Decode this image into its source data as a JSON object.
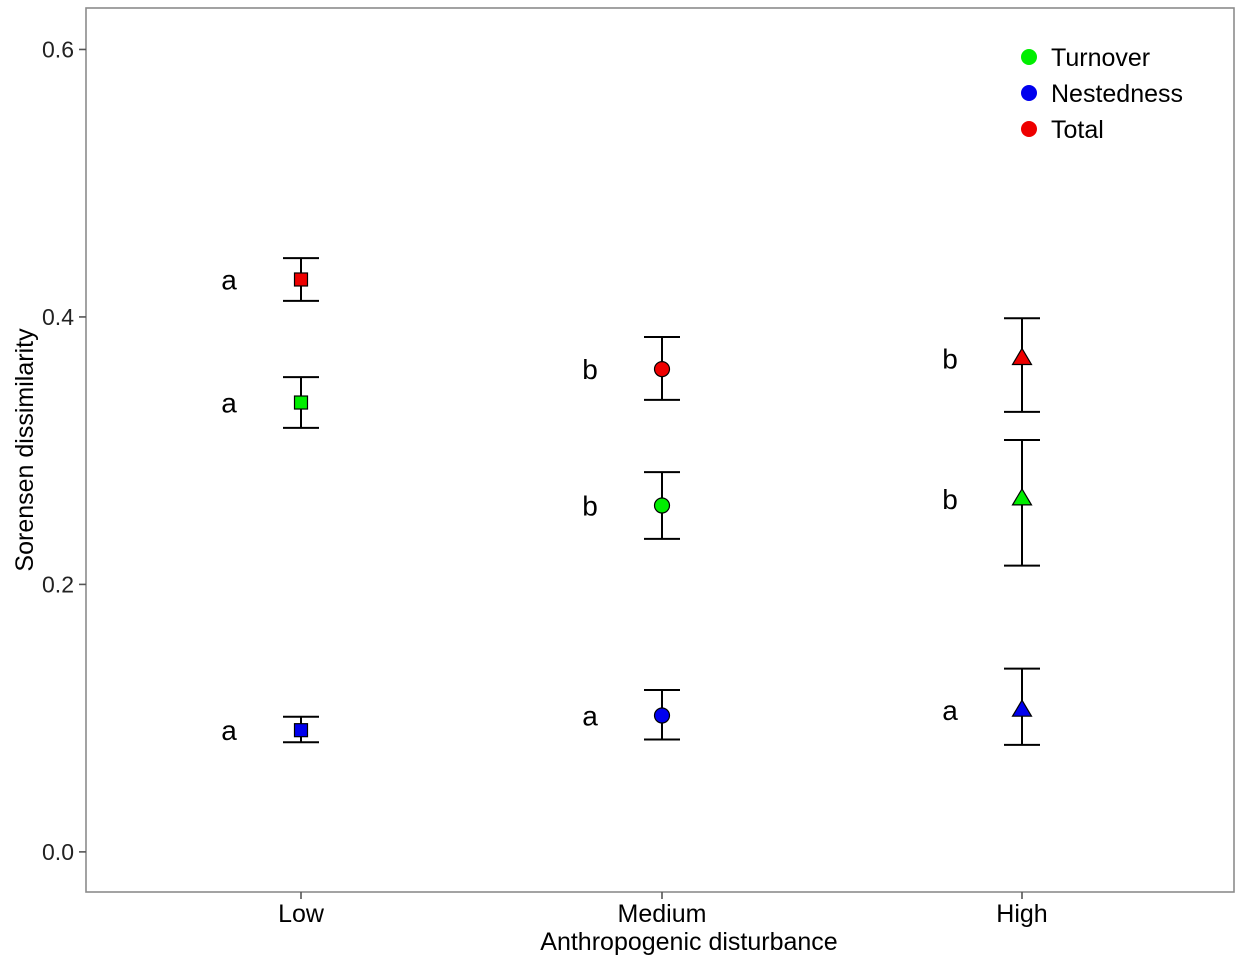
{
  "chart_data": {
    "type": "scatter",
    "title": "",
    "xlabel": "Anthropogenic disturbance",
    "ylabel": "Sorensen dissimilarity",
    "categories": [
      "Low",
      "Medium",
      "High"
    ],
    "ylim": [
      -0.03,
      0.631
    ],
    "yticks": [
      0.0,
      0.2,
      0.4,
      0.6
    ],
    "ytick_labels": [
      "0.0",
      "0.2",
      "0.4",
      "0.6"
    ],
    "grid": false,
    "legend_position": "top-right",
    "category_shapes": [
      "square",
      "circle",
      "triangle"
    ],
    "series": [
      {
        "name": "Turnover",
        "color": "#00ee00",
        "values": [
          0.336,
          0.259,
          0.264
        ],
        "lower": [
          0.317,
          0.234,
          0.214
        ],
        "upper": [
          0.355,
          0.284,
          0.308
        ],
        "letters": [
          "a",
          "b",
          "b"
        ]
      },
      {
        "name": "Nestedness",
        "color": "#0000ee",
        "values": [
          0.091,
          0.102,
          0.106
        ],
        "lower": [
          0.082,
          0.084,
          0.08
        ],
        "upper": [
          0.101,
          0.121,
          0.137
        ],
        "letters": [
          "a",
          "a",
          "a"
        ]
      },
      {
        "name": "Total",
        "color": "#ee0000",
        "values": [
          0.428,
          0.361,
          0.369
        ],
        "lower": [
          0.412,
          0.338,
          0.329
        ],
        "upper": [
          0.444,
          0.385,
          0.399
        ],
        "letters": [
          "a",
          "b",
          "b"
        ]
      }
    ]
  }
}
